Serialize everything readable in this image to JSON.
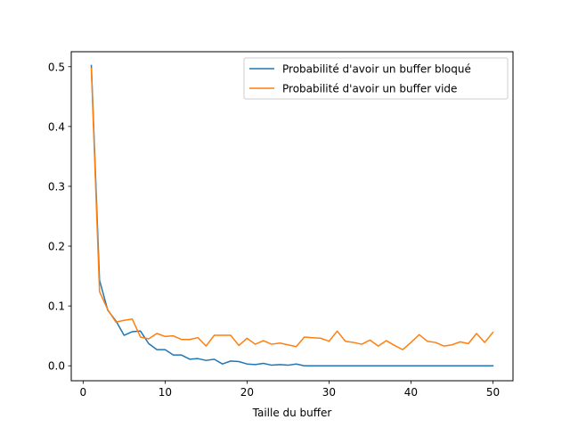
{
  "chart_data": {
    "type": "line",
    "title": "",
    "xlabel": "Taille du buffer",
    "ylabel": "",
    "xlim": [
      -1.45,
      52.45
    ],
    "ylim": [
      -0.025,
      0.525
    ],
    "xticks": [
      0,
      10,
      20,
      30,
      40,
      50
    ],
    "xtick_labels": [
      "0",
      "10",
      "20",
      "30",
      "40",
      "50"
    ],
    "yticks": [
      0.0,
      0.1,
      0.2,
      0.3,
      0.4,
      0.5
    ],
    "ytick_labels": [
      "0.0",
      "0.1",
      "0.2",
      "0.3",
      "0.4",
      "0.5"
    ],
    "grid": false,
    "legend_position": "top-right",
    "x": [
      1,
      2,
      3,
      4,
      5,
      6,
      7,
      8,
      9,
      10,
      11,
      12,
      13,
      14,
      15,
      16,
      17,
      18,
      19,
      20,
      21,
      22,
      23,
      24,
      25,
      26,
      27,
      28,
      29,
      30,
      31,
      32,
      33,
      34,
      35,
      36,
      37,
      38,
      39,
      40,
      41,
      42,
      43,
      44,
      45,
      46,
      47,
      48,
      49,
      50
    ],
    "series": [
      {
        "name": "Probabilité d'avoir un buffer bloqué",
        "color": "#1f77b4",
        "values": [
          0.502,
          0.143,
          0.093,
          0.075,
          0.051,
          0.057,
          0.058,
          0.037,
          0.027,
          0.027,
          0.018,
          0.018,
          0.011,
          0.012,
          0.009,
          0.011,
          0.003,
          0.008,
          0.007,
          0.003,
          0.002,
          0.004,
          0.001,
          0.002,
          0.001,
          0.003,
          0.0,
          0.0,
          0.0,
          0.0,
          0.0,
          0.0,
          0.0,
          0.0,
          0.0,
          0.0,
          0.0,
          0.0,
          0.0,
          0.0,
          0.0,
          0.0,
          0.0,
          0.0,
          0.0,
          0.0,
          0.0,
          0.0,
          0.0,
          0.0
        ]
      },
      {
        "name": "Probabilité d'avoir un buffer vide",
        "color": "#ff7f0e",
        "values": [
          0.497,
          0.124,
          0.094,
          0.073,
          0.076,
          0.078,
          0.048,
          0.045,
          0.054,
          0.049,
          0.05,
          0.044,
          0.044,
          0.047,
          0.033,
          0.051,
          0.051,
          0.051,
          0.034,
          0.046,
          0.036,
          0.042,
          0.036,
          0.038,
          0.035,
          0.032,
          0.048,
          0.047,
          0.046,
          0.041,
          0.058,
          0.041,
          0.039,
          0.036,
          0.043,
          0.033,
          0.042,
          0.034,
          0.027,
          0.039,
          0.052,
          0.041,
          0.039,
          0.033,
          0.035,
          0.04,
          0.037,
          0.054,
          0.039,
          0.056
        ]
      }
    ]
  }
}
